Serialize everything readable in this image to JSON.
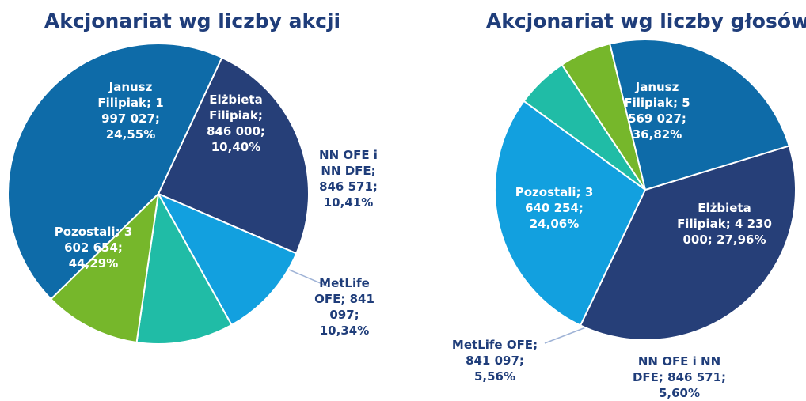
{
  "chart_data": [
    {
      "type": "pie",
      "title": "Akcjonariat wg liczby akcji",
      "categories": [
        "Janusz Filipiak",
        "Elżbieta Filipiak",
        "NN OFE i NN DFE",
        "MetLife OFE",
        "Pozostali"
      ],
      "counts": [
        1997027,
        846000,
        846571,
        841097,
        3602654
      ],
      "count_labels": [
        "1 997 027",
        "846 000",
        "846 571",
        "841 097",
        "3 602 654"
      ],
      "values": [
        24.55,
        10.4,
        10.41,
        10.34,
        44.29
      ],
      "value_labels": [
        "24,55%",
        "10,40%",
        "10,41%",
        "10,34%",
        "44,29%"
      ],
      "colors": [
        "#263f78",
        "#12a0df",
        "#20bca6",
        "#76b72b",
        "#0e6ba8"
      ]
    },
    {
      "type": "pie",
      "title": "Akcjonariat wg liczby głosów",
      "categories": [
        "Janusz Filipiak",
        "Elżbieta Filipiak",
        "NN OFE i NN DFE",
        "MetLife OFE",
        "Pozostali"
      ],
      "counts": [
        5569027,
        4230000,
        846571,
        841097,
        3640254
      ],
      "count_labels": [
        "5 569 027",
        "4 230 000",
        "846 571",
        "841 097",
        "3 640 254"
      ],
      "values": [
        36.82,
        27.96,
        5.6,
        5.56,
        24.06
      ],
      "value_labels": [
        "36,82%",
        "27,96%",
        "5,60%",
        "5,56%",
        "24,06%"
      ],
      "colors": [
        "#263f78",
        "#12a0df",
        "#20bca6",
        "#76b72b",
        "#0e6ba8"
      ]
    }
  ]
}
